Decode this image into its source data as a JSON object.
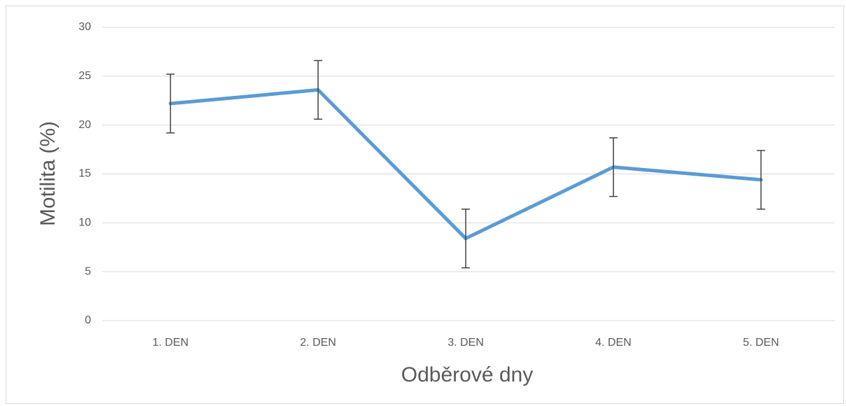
{
  "chart_data": {
    "type": "line",
    "x_label": "Odběrové dny",
    "y_label": "Motilita (%)",
    "categories": [
      "1. DEN",
      "2. DEN",
      "3. DEN",
      "4. DEN",
      "5. DEN"
    ],
    "values": [
      22.2,
      23.6,
      8.4,
      15.7,
      14.4
    ],
    "errors": [
      3,
      3,
      3,
      3,
      3
    ],
    "color": "#5b9bd5",
    "ylim": [
      0,
      30
    ],
    "yticks": [
      0,
      5,
      10,
      15,
      20,
      25,
      30
    ],
    "grid": true
  }
}
